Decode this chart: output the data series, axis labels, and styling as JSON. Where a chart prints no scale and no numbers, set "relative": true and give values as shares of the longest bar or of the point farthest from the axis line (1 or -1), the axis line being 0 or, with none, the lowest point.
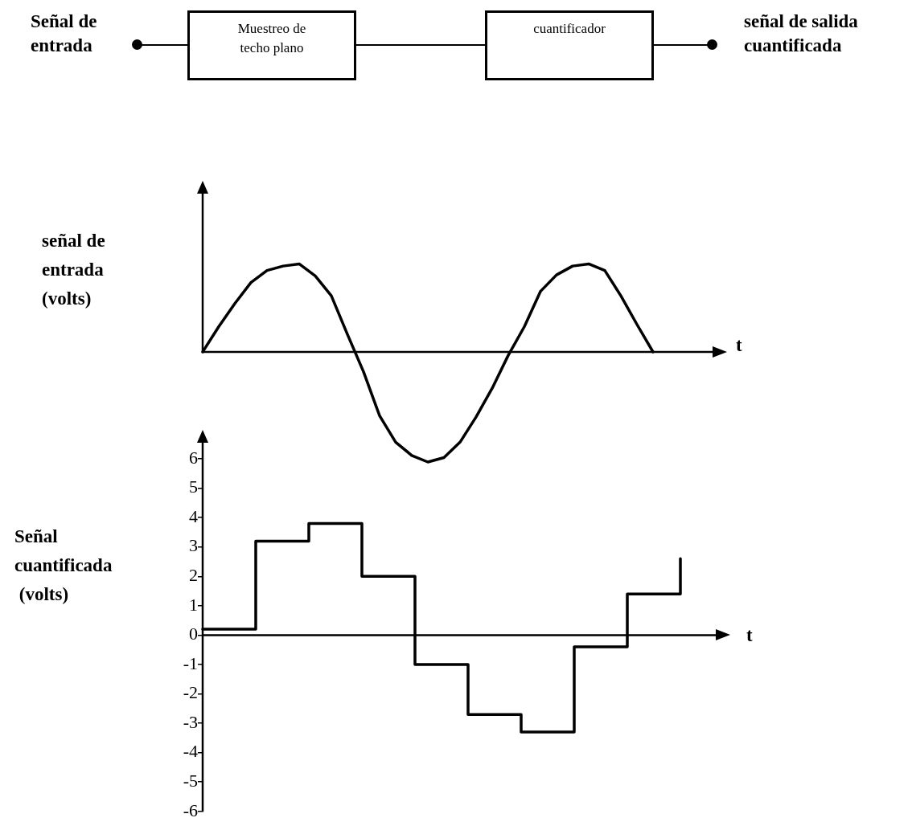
{
  "chart_data": [
    {
      "type": "other",
      "annotations": [
        "Señal de\nentrada",
        "Muestreo de\ntecho plano",
        "cuantificador",
        "señal de salida\ncuantificada"
      ]
    },
    {
      "type": "line",
      "relative": true,
      "ylabel": "señal de\nentrada\n(volts)",
      "xlabel": "t",
      "marker": "none",
      "color": "#000000",
      "categories": [
        null,
        null,
        null,
        null,
        null,
        null,
        null,
        null,
        null,
        null,
        null,
        null,
        null,
        null,
        null,
        null,
        null,
        null,
        null,
        null,
        null,
        null,
        null,
        null,
        null,
        null,
        null,
        null,
        null
      ],
      "values": [
        0,
        0.23,
        0.44,
        0.63,
        0.74,
        0.78,
        0.8,
        0.69,
        0.51,
        0.16,
        -0.18,
        -0.58,
        -0.82,
        -0.94,
        -1,
        -0.96,
        -0.82,
        -0.59,
        -0.33,
        -0.03,
        0.23,
        0.55,
        0.7,
        0.78,
        0.8,
        0.74,
        0.51,
        0.25,
        0
      ]
    },
    {
      "type": "step",
      "ylabel": "Señal\ncuantificada\n (volts)",
      "xlabel": "t",
      "marker": "none",
      "color": "#000000",
      "tick_labels": "y",
      "categories": [
        null,
        null,
        null,
        null,
        null,
        null,
        null,
        null,
        null,
        null
      ],
      "values": [
        0.2,
        3.2,
        3.8,
        2,
        -1,
        -2.7,
        -3.3,
        -0.4,
        1.4,
        2.6
      ],
      "ylim": [
        -6,
        6
      ],
      "yticks": [
        -6,
        -5,
        -4,
        -3,
        -2,
        -1,
        0,
        1,
        2,
        3,
        4,
        5,
        6
      ]
    }
  ]
}
